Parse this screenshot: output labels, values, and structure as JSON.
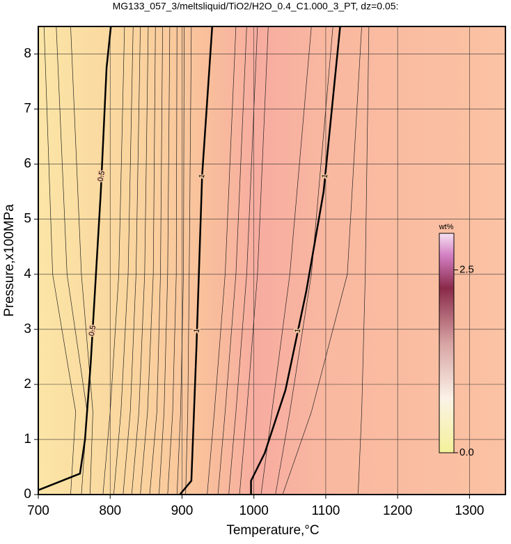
{
  "chart_data": {
    "type": "contour",
    "title": "MG133_057_3/meltsliquid/TiO2/H2O_0.4_C1.000_3_PT, dz=0.05:",
    "xlabel": "Temperature,°C",
    "ylabel": "Pressure,x100MPa",
    "xlim": [
      700,
      1350
    ],
    "ylim": [
      0,
      8.5
    ],
    "xticks": [
      700,
      800,
      900,
      1000,
      1100,
      1200,
      1300
    ],
    "yticks": [
      0,
      1,
      2,
      3,
      4,
      5,
      6,
      7,
      8
    ],
    "grid": true,
    "contours": [
      {
        "level": 0.5,
        "x": [
          700,
          758,
          765,
          773,
          787,
          795,
          801
        ],
        "y": [
          0.08,
          0.38,
          1.0,
          2.4,
          5.5,
          7.75,
          8.5
        ]
      },
      {
        "level": 1,
        "x": [
          897,
          913,
          920,
          928,
          942
        ],
        "y": [
          0,
          0.25,
          2.65,
          5.8,
          8.5
        ]
      },
      {
        "level": 1,
        "x": [
          996,
          996,
          1015,
          1044,
          1073,
          1097,
          1120
        ],
        "y": [
          0,
          0.25,
          0.75,
          1.9,
          3.7,
          5.5,
          8.5
        ]
      }
    ],
    "minor_contours": {
      "y": [
        0,
        1.5,
        4,
        8.5
      ],
      "x": [
        [
          745,
          752,
          720,
          708
        ],
        [
          760,
          768,
          740,
          725
        ],
        [
          772,
          776,
          760,
          745
        ],
        [
          790,
          800,
          812,
          820
        ],
        [
          805,
          815,
          825,
          832
        ],
        [
          818,
          828,
          836,
          842
        ],
        [
          830,
          840,
          848,
          853
        ],
        [
          842,
          852,
          860,
          863
        ],
        [
          855,
          865,
          870,
          873
        ],
        [
          868,
          875,
          880,
          883
        ],
        [
          880,
          887,
          892,
          893
        ],
        [
          893,
          898,
          902,
          903
        ],
        [
          905,
          908,
          910,
          913
        ],
        [
          935,
          945,
          960,
          975
        ],
        [
          950,
          960,
          975,
          990
        ],
        [
          965,
          975,
          990,
          1005
        ],
        [
          980,
          990,
          1005,
          1020
        ],
        [
          1010,
          1025,
          1050,
          1080
        ],
        [
          1030,
          1050,
          1080,
          1110
        ],
        [
          1040,
          1080,
          1130,
          1150
        ],
        [
          1145,
          1150,
          1155,
          1160
        ]
      ]
    },
    "colorbar": {
      "label": "wt%",
      "lim": [
        0,
        3
      ],
      "ticks": [
        {
          "value": 0,
          "label": "0.0"
        },
        2.5
      ]
    }
  }
}
